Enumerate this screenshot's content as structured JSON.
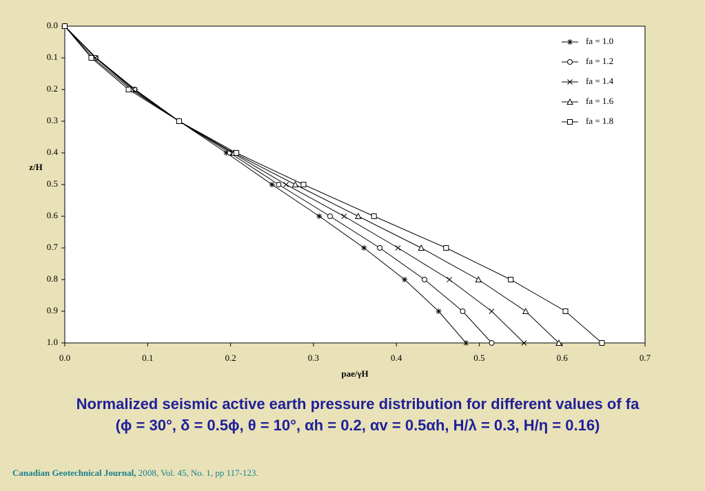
{
  "chart_data": {
    "type": "line",
    "title": "Normalized seismic active earth pressure distribution for different values of fa",
    "subtitle": "(ϕ = 30°, δ = 0.5ϕ, θ = 10°, αh = 0.2, αv = 0.5αh, H/λ = 0.3, H/η = 0.16)",
    "x_label": "pae/γH",
    "y_label": "z/H",
    "y": [
      0,
      0.1,
      0.2,
      0.3,
      0.4,
      0.5,
      0.6,
      0.7,
      0.8,
      0.9,
      1
    ],
    "series": [
      {
        "name": "fa = 1.0",
        "marker": "asterisk",
        "color": "#000000",
        "values": [
          0,
          0.038,
          0.085,
          0.138,
          0.195,
          0.25,
          0.307,
          0.361,
          0.41,
          0.451,
          0.484
        ]
      },
      {
        "name": "fa = 1.2",
        "marker": "circle",
        "color": "#000000",
        "values": [
          0,
          0.037,
          0.084,
          0.138,
          0.199,
          0.258,
          0.32,
          0.38,
          0.434,
          0.48,
          0.515
        ]
      },
      {
        "name": "fa = 1.4",
        "marker": "x",
        "color": "#000000",
        "values": [
          0,
          0.037,
          0.082,
          0.138,
          0.202,
          0.267,
          0.337,
          0.402,
          0.464,
          0.515,
          0.554
        ]
      },
      {
        "name": "fa = 1.6",
        "marker": "triangle",
        "color": "#000000",
        "values": [
          0,
          0.034,
          0.08,
          0.138,
          0.204,
          0.278,
          0.354,
          0.43,
          0.499,
          0.556,
          0.596
        ]
      },
      {
        "name": "fa = 1.8",
        "marker": "square",
        "color": "#000000",
        "values": [
          0,
          0.032,
          0.077,
          0.138,
          0.207,
          0.288,
          0.373,
          0.46,
          0.538,
          0.604,
          0.648
        ]
      }
    ],
    "xlim": [
      0,
      0.7
    ],
    "xticks": [
      {
        "value": 0,
        "label": "0.0"
      },
      0.1,
      0.2,
      0.3,
      0.4,
      0.5,
      0.6,
      0.7
    ],
    "ylim": [
      0,
      1
    ],
    "y_inverted": true,
    "yticks": [
      {
        "value": 0,
        "label": "0.0"
      },
      0.1,
      0.2,
      0.3,
      0.4,
      0.5,
      0.6,
      0.7,
      0.8,
      0.9,
      {
        "value": 1,
        "label": "1.0"
      }
    ],
    "legend": "top-right"
  },
  "source": {
    "journal": "Canadian Geotechnical Journal,",
    "details": "2008, Vol. 45, No. 1, pp 117-123."
  }
}
